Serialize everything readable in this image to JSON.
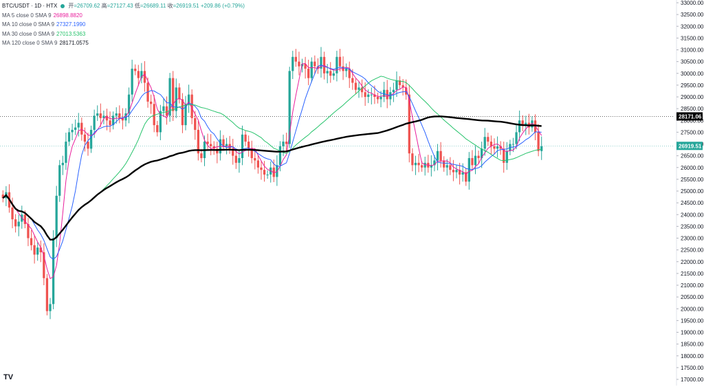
{
  "header": {
    "symbol": "BTC/USDT · 1D · HTX",
    "status_color": "#26a69a",
    "ohlc": [
      {
        "k": "开",
        "v": "=26709.62"
      },
      {
        "k": "高",
        "v": "=27127.43"
      },
      {
        "k": "低",
        "v": "=26689.11"
      },
      {
        "k": "收",
        "v": "=26919.51"
      }
    ],
    "change": "+209.86 (+0.79%)"
  },
  "indicators": [
    {
      "label": "MA 5 close 0 SMA 9",
      "value": "26898.8820",
      "color": "#e91e9c"
    },
    {
      "label": "MA 10 close 0 SMA 9",
      "value": "27327.1990",
      "color": "#2962ff"
    },
    {
      "label": "MA 30 close 0 SMA 9",
      "value": "27013.5363",
      "color": "#26c36b"
    },
    {
      "label": "MA 120 close 0 SMA 9",
      "value": "28171.0575",
      "color": "#000000"
    }
  ],
  "logo_text": "TV",
  "chart_data": {
    "type": "candlestick",
    "y_axis": {
      "min": 17000,
      "max": 33000,
      "step": 500,
      "decimals": 2
    },
    "y_ticks": [
      "33000.00",
      "32500.00",
      "32000.00",
      "31500.00",
      "31000.00",
      "30500.00",
      "30000.00",
      "29500.00",
      "29000.00",
      "28500.00",
      "28000.00",
      "27500.00",
      "27000.00",
      "26500.00",
      "26000.00",
      "25500.00",
      "25000.00",
      "24500.00",
      "24000.00",
      "23500.00",
      "23000.00",
      "22500.00",
      "22000.00",
      "21500.00",
      "21000.00",
      "20500.00",
      "20000.00",
      "19500.00",
      "19000.00",
      "18500.00",
      "18000.00",
      "17500.00",
      "17000.00"
    ],
    "price_labels": [
      {
        "text": "28171.06",
        "value": 28171.06,
        "color": "#000000"
      },
      {
        "text": "26919.51",
        "value": 26919.51,
        "color": "#26a69a"
      }
    ],
    "colors": {
      "up": "#26a69a",
      "down": "#ef5350",
      "ma5": "#e91e9c",
      "ma10": "#2962ff",
      "ma30": "#26c36b",
      "ma120": "#000000",
      "grid": "#e0e3eb"
    },
    "candles_close": [
      24700,
      24950,
      24300,
      23800,
      23500,
      23700,
      24000,
      23600,
      23000,
      22700,
      22300,
      22600,
      22400,
      21300,
      19900,
      20200,
      23000,
      24800,
      26100,
      26200,
      27100,
      27500,
      27600,
      27700,
      27900,
      27400,
      27100,
      26800,
      27600,
      28200,
      28300,
      28100,
      28200,
      28000,
      27800,
      28200,
      28300,
      28100,
      28000,
      28300,
      29100,
      30200,
      30100,
      29800,
      30100,
      29600,
      28800,
      28700,
      27800,
      27500,
      28400,
      28600,
      28200,
      29800,
      28400,
      29400,
      28900,
      27800,
      28700,
      29100,
      28100,
      27600,
      26600,
      26400,
      27100,
      27000,
      26900,
      26800,
      26600,
      27200,
      26900,
      27000,
      26800,
      26500,
      26200,
      26400,
      27400,
      27100,
      26800,
      26400,
      26300,
      26000,
      25900,
      25700,
      25700,
      26000,
      25600,
      26100,
      26900,
      27100,
      27000,
      30100,
      30700,
      30500,
      30300,
      30400,
      30200,
      29800,
      30500,
      30300,
      30200,
      30700,
      30000,
      30100,
      29900,
      30000,
      30700,
      30300,
      30100,
      30200,
      29800,
      29600,
      29300,
      29400,
      29200,
      29000,
      29100,
      29100,
      29000,
      28900,
      29000,
      29300,
      28900,
      29200,
      29300,
      29700,
      29500,
      29400,
      29100,
      26600,
      26100,
      26200,
      26100,
      26000,
      26200,
      26000,
      26100,
      26300,
      26700,
      26300,
      26000,
      26100,
      25900,
      25800,
      25900,
      25700,
      25800,
      25400,
      26400,
      26100,
      26500,
      26400,
      26800,
      27300,
      27100,
      26900,
      26800,
      26900,
      26800,
      26200,
      26700,
      27000,
      27000,
      27500,
      28000,
      27800,
      27900,
      27700,
      28000,
      27500,
      26700,
      26900
    ]
  }
}
